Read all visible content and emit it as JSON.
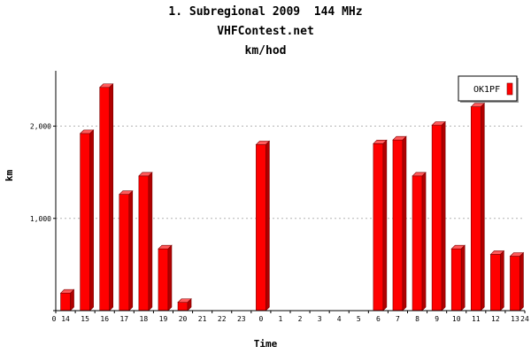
{
  "chart_data": {
    "type": "bar",
    "title": "1. Subregional 2009  144 MHz",
    "subtitle": "VHFContest.net",
    "unit_title": "km/hod",
    "xlabel": "Time",
    "ylabel": "km",
    "ylim": [
      0,
      2600
    ],
    "y_ticks": [
      {
        "value": 0,
        "label": "0"
      },
      {
        "value": 1000,
        "label": "1,000"
      },
      {
        "value": 2000,
        "label": "2,000"
      }
    ],
    "x_start_label": "0",
    "x_end_label": "24",
    "categories": [
      "14",
      "15",
      "16",
      "17",
      "18",
      "19",
      "20",
      "21",
      "22",
      "23",
      "0",
      "1",
      "2",
      "3",
      "4",
      "5",
      "6",
      "7",
      "8",
      "9",
      "10",
      "11",
      "12",
      "13"
    ],
    "grid": true,
    "legend_position": "top-right",
    "series": [
      {
        "name": "OK1PF",
        "color": "#ff0000",
        "values": [
          190,
          1920,
          2420,
          1260,
          1460,
          670,
          90,
          0,
          0,
          0,
          1800,
          0,
          0,
          0,
          0,
          0,
          1810,
          1850,
          1460,
          2010,
          670,
          2210,
          610,
          590
        ]
      }
    ]
  }
}
